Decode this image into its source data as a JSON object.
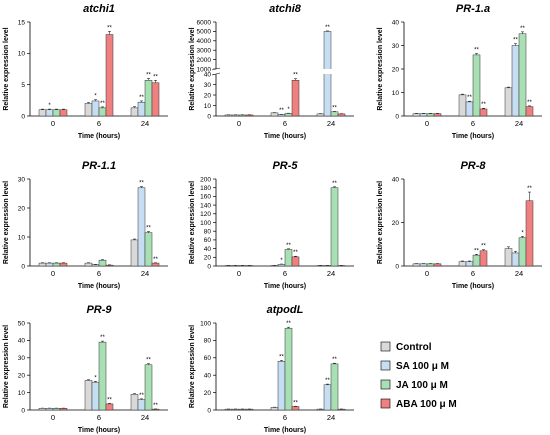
{
  "legend": [
    {
      "label": "Control",
      "color": "#d9d9d9"
    },
    {
      "label": "SA 100 μ M",
      "color": "#c6ddf2"
    },
    {
      "label": "JA 100 μ M",
      "color": "#a8e0b4"
    },
    {
      "label": "ABA 100 μ M",
      "color": "#f08080"
    }
  ],
  "chart_data": [
    {
      "type": "bar",
      "title": "atchi1",
      "xlabel": "Time (hours)",
      "ylabel": "Relative expression level",
      "categories": [
        "0",
        "6",
        "24"
      ],
      "ylim": [
        0,
        15
      ],
      "yticks": [
        0,
        5,
        10,
        15
      ],
      "series": [
        {
          "name": "Control",
          "values": [
            1,
            2,
            1.3
          ],
          "errors": [
            0.1,
            0.15,
            0.2
          ]
        },
        {
          "name": "SA 100 μ M",
          "values": [
            1,
            2.4,
            2.2
          ],
          "errors": [
            0.1,
            0.2,
            0.2
          ]
        },
        {
          "name": "JA 100 μ M",
          "values": [
            1,
            1.3,
            5.7
          ],
          "errors": [
            0.1,
            0.15,
            0.3
          ]
        },
        {
          "name": "ABA 100 μ M",
          "values": [
            1,
            13,
            5.3
          ],
          "errors": [
            0.1,
            0.5,
            0.4
          ]
        }
      ],
      "annotations": [
        [
          "",
          "",
          ""
        ],
        [
          "*",
          "*",
          "**"
        ],
        [
          "",
          "**",
          "**"
        ],
        [
          "",
          "**",
          "**"
        ]
      ]
    },
    {
      "type": "bar",
      "title": "atchi8",
      "xlabel": "Time (hours)",
      "ylabel": "Relative expression level",
      "categories": [
        "0",
        "6",
        "24"
      ],
      "broken_axis": {
        "lower": [
          0,
          40
        ],
        "upper": [
          1000,
          6000
        ]
      },
      "yticks": [
        0,
        10,
        20,
        30,
        40,
        1000,
        2000,
        3000,
        4000,
        5000,
        6000
      ],
      "series": [
        {
          "name": "Control",
          "values": [
            1,
            3,
            2
          ],
          "errors": [
            0.1,
            0.2,
            0.2
          ]
        },
        {
          "name": "SA 100 μ M",
          "values": [
            1,
            1.5,
            5000
          ],
          "errors": [
            0.1,
            0.2,
            50
          ]
        },
        {
          "name": "JA 100 μ M",
          "values": [
            1,
            2.5,
            4
          ],
          "errors": [
            0.1,
            0.2,
            0.3
          ]
        },
        {
          "name": "ABA 100 μ M",
          "values": [
            1,
            34,
            2
          ],
          "errors": [
            0.1,
            1.5,
            0.2
          ]
        }
      ],
      "annotations": [
        [
          "",
          "",
          ""
        ],
        [
          "",
          "**",
          "**"
        ],
        [
          "",
          "*",
          "**"
        ],
        [
          "",
          "**",
          ""
        ]
      ]
    },
    {
      "type": "bar",
      "title": "PR-1.a",
      "xlabel": "Time (hours)",
      "ylabel": "Relative expression level",
      "categories": [
        "0",
        "6",
        "24"
      ],
      "ylim": [
        0,
        40
      ],
      "yticks": [
        0,
        10,
        20,
        30,
        40
      ],
      "series": [
        {
          "name": "Control",
          "values": [
            1,
            9,
            12
          ],
          "errors": [
            0.1,
            0.3,
            0.3
          ]
        },
        {
          "name": "SA 100 μ M",
          "values": [
            1,
            6,
            30
          ],
          "errors": [
            0.1,
            0.3,
            0.8
          ]
        },
        {
          "name": "JA 100 μ M",
          "values": [
            1,
            26,
            35
          ],
          "errors": [
            0.1,
            0.6,
            0.8
          ]
        },
        {
          "name": "ABA 100 μ M",
          "values": [
            1,
            3,
            4
          ],
          "errors": [
            0.1,
            0.3,
            0.3
          ]
        }
      ],
      "annotations": [
        [
          "",
          "",
          ""
        ],
        [
          "",
          "**",
          "**"
        ],
        [
          "",
          "**",
          "**"
        ],
        [
          "",
          "**",
          "**"
        ]
      ]
    },
    {
      "type": "bar",
      "title": "PR-1.1",
      "xlabel": "Time (hours)",
      "ylabel": "Relative expression level",
      "categories": [
        "0",
        "6",
        "24"
      ],
      "ylim": [
        0,
        30
      ],
      "yticks": [
        0,
        10,
        20,
        30
      ],
      "series": [
        {
          "name": "Control",
          "values": [
            1,
            1,
            9
          ],
          "errors": [
            0.1,
            0.1,
            0.3
          ]
        },
        {
          "name": "SA 100 μ M",
          "values": [
            1,
            0.5,
            27
          ],
          "errors": [
            0.1,
            0.1,
            0.4
          ]
        },
        {
          "name": "JA 100 μ M",
          "values": [
            1,
            2,
            11.5
          ],
          "errors": [
            0.1,
            0.2,
            0.4
          ]
        },
        {
          "name": "ABA 100 μ M",
          "values": [
            1,
            0.3,
            1
          ],
          "errors": [
            0.1,
            0.1,
            0.1
          ]
        }
      ],
      "annotations": [
        [
          "",
          "",
          ""
        ],
        [
          "",
          "",
          "**"
        ],
        [
          "",
          "",
          "**"
        ],
        [
          "",
          "",
          "**"
        ]
      ]
    },
    {
      "type": "bar",
      "title": "PR-5",
      "xlabel": "Time (hours)",
      "ylabel": "Relative expression level",
      "categories": [
        "0",
        "6",
        "24"
      ],
      "ylim": [
        0,
        200
      ],
      "yticks": [
        0,
        20,
        40,
        60,
        80,
        100,
        120,
        140,
        160,
        180,
        200
      ],
      "series": [
        {
          "name": "Control",
          "values": [
            1,
            1,
            1
          ],
          "errors": [
            0.1,
            0.1,
            0.1
          ]
        },
        {
          "name": "SA 100 μ M",
          "values": [
            1,
            4,
            1
          ],
          "errors": [
            0.1,
            0.5,
            0.1
          ]
        },
        {
          "name": "JA 100 μ M",
          "values": [
            1,
            38,
            180
          ],
          "errors": [
            0.1,
            1.5,
            2
          ]
        },
        {
          "name": "ABA 100 μ M",
          "values": [
            1,
            21,
            1
          ],
          "errors": [
            0.1,
            1.5,
            0.1
          ]
        }
      ],
      "annotations": [
        [
          "",
          "",
          ""
        ],
        [
          "",
          "*",
          ""
        ],
        [
          "",
          "**",
          "**"
        ],
        [
          "",
          "**",
          ""
        ]
      ]
    },
    {
      "type": "bar",
      "title": "PR-8",
      "xlabel": "Time (hours)",
      "ylabel": "Relative expression level",
      "categories": [
        "0",
        "6",
        "24"
      ],
      "ylim": [
        0,
        40
      ],
      "yticks": [
        0,
        20,
        40
      ],
      "series": [
        {
          "name": "Control",
          "values": [
            1,
            2,
            8
          ],
          "errors": [
            0.1,
            0.3,
            0.8
          ]
        },
        {
          "name": "SA 100 μ M",
          "values": [
            1,
            2,
            6
          ],
          "errors": [
            0.1,
            0.3,
            0.8
          ]
        },
        {
          "name": "JA 100 μ M",
          "values": [
            1,
            5,
            13
          ],
          "errors": [
            0.1,
            0.4,
            0.6
          ]
        },
        {
          "name": "ABA 100 μ M",
          "values": [
            1,
            7,
            30
          ],
          "errors": [
            0.1,
            0.5,
            4
          ]
        }
      ],
      "annotations": [
        [
          "",
          "",
          ""
        ],
        [
          "",
          "",
          ""
        ],
        [
          "",
          "**",
          "*"
        ],
        [
          "",
          "**",
          "**"
        ]
      ]
    },
    {
      "type": "bar",
      "title": "PR-9",
      "xlabel": "Time (hours)",
      "ylabel": "Relative expression level",
      "categories": [
        "0",
        "6",
        "24"
      ],
      "ylim": [
        0,
        50
      ],
      "yticks": [
        0,
        10,
        20,
        30,
        40,
        50
      ],
      "series": [
        {
          "name": "Control",
          "values": [
            1,
            17,
            9
          ],
          "errors": [
            0.1,
            0.4,
            0.4
          ]
        },
        {
          "name": "SA 100 μ M",
          "values": [
            1,
            16,
            6
          ],
          "errors": [
            0.1,
            0.5,
            0.4
          ]
        },
        {
          "name": "JA 100 μ M",
          "values": [
            1,
            39,
            26
          ],
          "errors": [
            0.1,
            0.6,
            0.6
          ]
        },
        {
          "name": "ABA 100 μ M",
          "values": [
            1,
            3.5,
            0.5
          ],
          "errors": [
            0.1,
            0.3,
            0.1
          ]
        }
      ],
      "annotations": [
        [
          "",
          "",
          ""
        ],
        [
          "",
          "*",
          "**"
        ],
        [
          "",
          "**",
          "**"
        ],
        [
          "",
          "**",
          "**"
        ]
      ]
    },
    {
      "type": "bar",
      "title": "atpodL",
      "xlabel": "Time (hours)",
      "ylabel": "Relative expression level",
      "categories": [
        "0",
        "6",
        "24"
      ],
      "ylim": [
        0,
        100
      ],
      "yticks": [
        0,
        20,
        40,
        60,
        80,
        100
      ],
      "series": [
        {
          "name": "Control",
          "values": [
            1,
            3,
            1
          ],
          "errors": [
            0.1,
            0.3,
            0.1
          ]
        },
        {
          "name": "SA 100 μ M",
          "values": [
            1,
            56,
            29
          ],
          "errors": [
            0.1,
            1,
            0.8
          ]
        },
        {
          "name": "JA 100 μ M",
          "values": [
            1,
            94,
            53
          ],
          "errors": [
            0.1,
            1.2,
            0.8
          ]
        },
        {
          "name": "ABA 100 μ M",
          "values": [
            1,
            4,
            1
          ],
          "errors": [
            0.1,
            0.3,
            0.1
          ]
        }
      ],
      "annotations": [
        [
          "",
          "",
          ""
        ],
        [
          "",
          "**",
          "**"
        ],
        [
          "",
          "**",
          "**"
        ],
        [
          "",
          "**",
          ""
        ]
      ]
    }
  ]
}
